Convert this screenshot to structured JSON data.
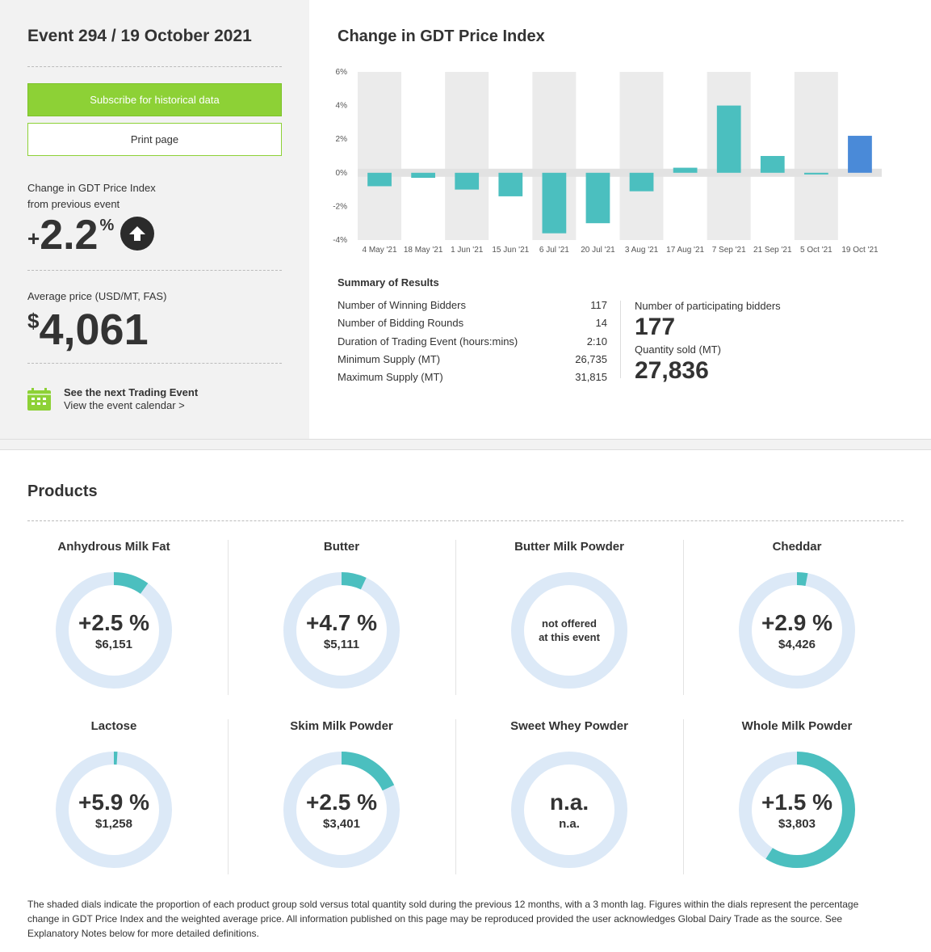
{
  "sidebar": {
    "event_title": "Event 294 / 19 October 2021",
    "subscribe_label": "Subscribe for historical data",
    "print_label": "Print page",
    "change_label_1": "Change in GDT Price Index",
    "change_label_2": "from previous event",
    "change_sign": "+",
    "change_value": "2.2",
    "change_unit": "%",
    "avg_price_label": "Average price (USD/MT, FAS)",
    "price_currency": "$",
    "price_value": "4,061",
    "next_event_title": "See the next Trading Event",
    "next_event_link": "View the event calendar >",
    "icons": [
      "arrow-up-icon",
      "calendar-icon"
    ]
  },
  "chart": {
    "title": "Change in GDT Price Index"
  },
  "chart_data": {
    "type": "bar",
    "title": "Change in GDT Price Index",
    "categories": [
      "4 May '21",
      "18 May '21",
      "1 Jun '21",
      "15 Jun '21",
      "6 Jul '21",
      "20 Jul '21",
      "3 Aug '21",
      "17 Aug '21",
      "7 Sep '21",
      "21 Sep '21",
      "5 Oct '21",
      "19 Oct '21"
    ],
    "values": [
      -0.8,
      -0.3,
      -1.0,
      -1.4,
      -3.6,
      -3.0,
      -1.1,
      0.3,
      4.0,
      1.0,
      -0.1,
      2.2
    ],
    "ylim": [
      -4,
      6
    ],
    "yticks": [
      "6%",
      "4%",
      "2%",
      "0%",
      "-2%",
      "-4%"
    ],
    "ytick_values": [
      6,
      4,
      2,
      0,
      -2,
      -4
    ],
    "grid": "alternating-columns",
    "colors": {
      "bar": "#4bbfbf",
      "highlight": "#4a8ad8",
      "band_dark": "#ebebeb",
      "band_light": "#ffffff"
    }
  },
  "summary": {
    "title": "Summary of Results",
    "rows": [
      {
        "label": "Number of Winning Bidders",
        "value": "117"
      },
      {
        "label": "Number of Bidding Rounds",
        "value": "14"
      },
      {
        "label": "Duration of Trading Event (hours:mins)",
        "value": "2:10"
      },
      {
        "label": "Minimum Supply (MT)",
        "value": "26,735"
      },
      {
        "label": "Maximum Supply (MT)",
        "value": "31,815"
      }
    ],
    "bidders_label": "Number of participating bidders",
    "bidders_value": "177",
    "qty_label": "Quantity sold (MT)",
    "qty_value": "27,836"
  },
  "products": {
    "title": "Products",
    "items": [
      {
        "name": "Anhydrous Milk Fat",
        "change": "+2.5 %",
        "price": "$6,151",
        "share": 0.1
      },
      {
        "name": "Butter",
        "change": "+4.7 %",
        "price": "$5,111",
        "share": 0.07
      },
      {
        "name": "Butter Milk Powder",
        "not_offered_1": "not offered",
        "not_offered_2": "at this event",
        "share": 0
      },
      {
        "name": "Cheddar",
        "change": "+2.9 %",
        "price": "$4,426",
        "share": 0.03
      },
      {
        "name": "Lactose",
        "change": "+5.9 %",
        "price": "$1,258",
        "share": 0.01
      },
      {
        "name": "Skim Milk Powder",
        "change": "+2.5 %",
        "price": "$3,401",
        "share": 0.18
      },
      {
        "name": "Sweet Whey Powder",
        "change": "n.a.",
        "price": "n.a.",
        "share": 0
      },
      {
        "name": "Whole Milk Powder",
        "change": "+1.5 %",
        "price": "$3,803",
        "share": 0.59
      }
    ],
    "colors": {
      "ring": "#dce9f7",
      "fill": "#4bbfbf"
    }
  },
  "footnote": "The shaded dials indicate the proportion of each product group sold versus total quantity sold during the previous 12 months, with a 3 month lag. Figures within the dials represent the percentage change in GDT Price Index and the weighted average price. All information published on this page may be reproduced provided the user acknowledges Global Dairy Trade as the source. See Explanatory Notes below for more detailed definitions."
}
